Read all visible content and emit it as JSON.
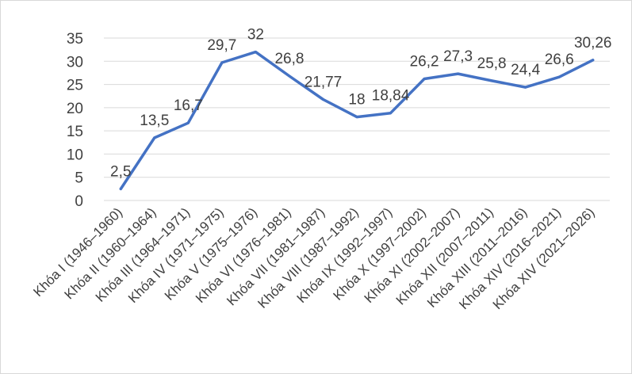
{
  "chart_data": {
    "type": "line",
    "title": "",
    "xlabel": "",
    "ylabel": "",
    "ylim": [
      0,
      35
    ],
    "yticks": [
      0,
      5,
      10,
      15,
      20,
      25,
      30,
      35
    ],
    "ytick_labels": [
      "0",
      "5",
      "10",
      "15",
      "20",
      "25",
      "30",
      "35"
    ],
    "grid": true,
    "legend": "none",
    "line_color": "#4472C4",
    "grid_color": "#d9d9d9",
    "categories": [
      "Khóa I (1946–1960)",
      "Khóa II (1960–1964)",
      "Khóa III (1964–1971)",
      "Khóa IV (1971–1975)",
      "Khóa V (1975–1976)",
      "Khóa VI (1976–1981)",
      "Khóa VII (1981–1987)",
      "Khóa VIII (1987–1992)",
      "Khóa IX (1992–1997)",
      "Khóa X (1997–2002)",
      "Khóa XI (2002–2007)",
      "Khóa XII (2007–2011)",
      "Khóa XIII (2011–2016)",
      "Khóa XIV (2016–2021)",
      "Khóa XIV (2021–2026)"
    ],
    "series": [
      {
        "values": [
          2.5,
          13.5,
          16.7,
          29.7,
          32,
          26.8,
          21.77,
          18,
          18.84,
          26.2,
          27.3,
          25.8,
          24.4,
          26.6,
          30.26
        ],
        "labels": [
          "2,5",
          "13,5",
          "16,7",
          "29,7",
          "32",
          "26,8",
          "21,77",
          "18",
          "18,84",
          "26,2",
          "27,3",
          "25,8",
          "24,4",
          "26,6",
          "30,26"
        ]
      }
    ]
  }
}
